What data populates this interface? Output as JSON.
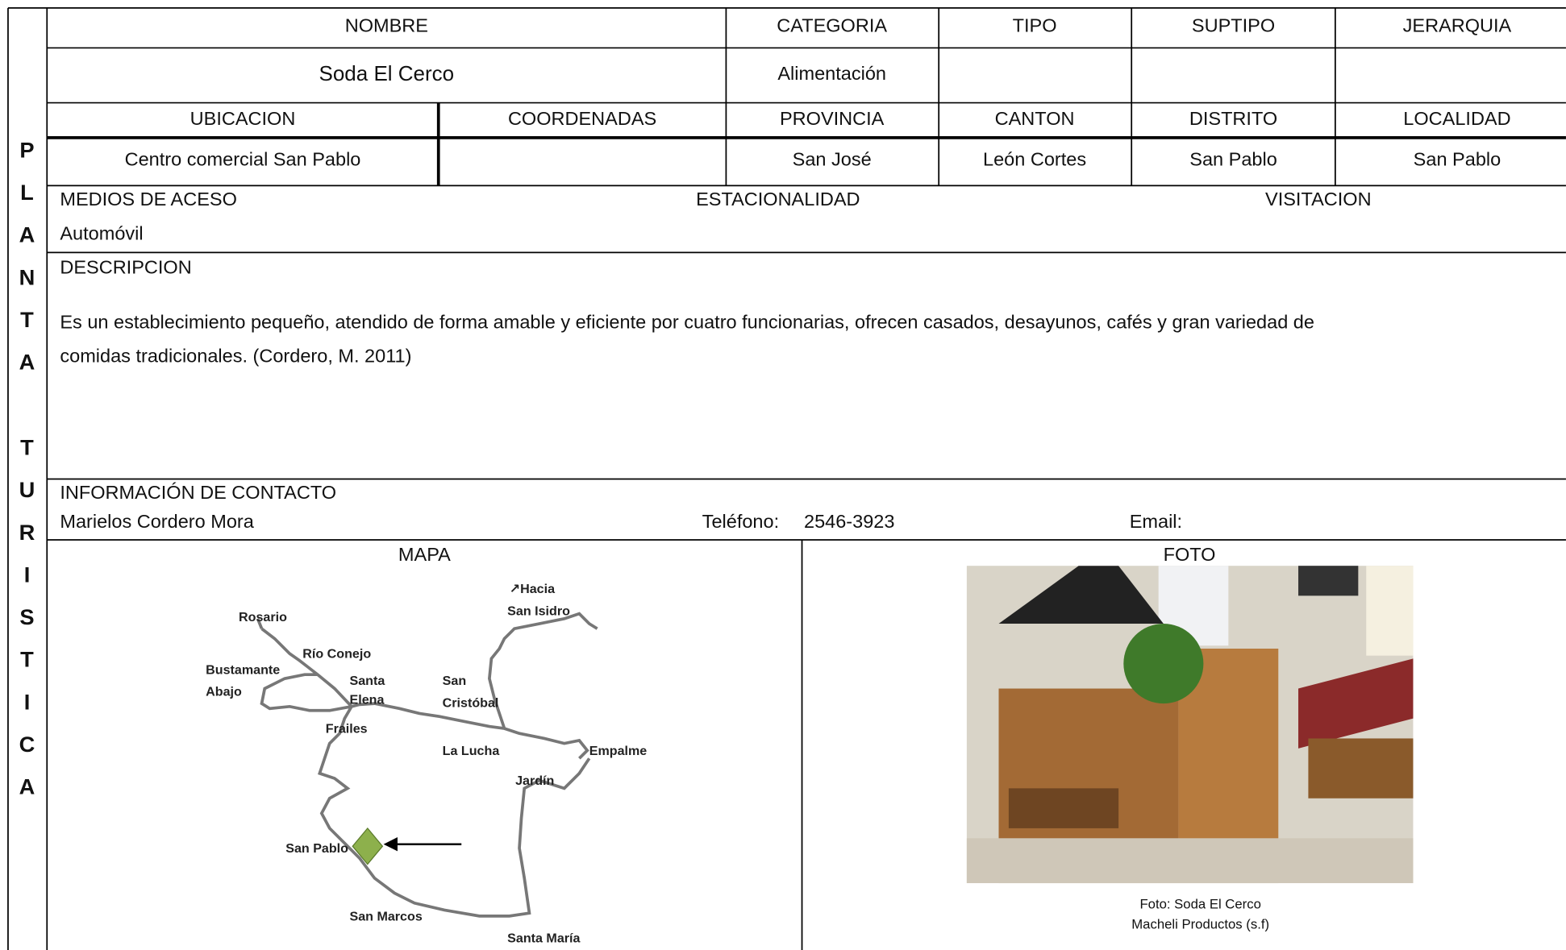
{
  "side_label": [
    "P",
    "L",
    "A",
    "N",
    "T",
    "A",
    "T",
    "U",
    "R",
    "I",
    "S",
    "T",
    "I",
    "C",
    "A"
  ],
  "header": {
    "columns": [
      "NOMBRE",
      "CATEGORIA",
      "TIPO",
      "SUPTIPO",
      "JERARQUIA"
    ]
  },
  "identity": {
    "name": "Soda El Cerco",
    "category": "Alimentación"
  },
  "location_header": {
    "columns": [
      "UBICACION",
      "COORDENADAS",
      "PROVINCIA",
      "CANTON",
      "DISTRITO",
      "LOCALIDAD"
    ]
  },
  "location": {
    "ubicacion": "Centro comercial San Pablo",
    "provincia": "San José",
    "canton": "León Cortes",
    "distrito": "San Pablo",
    "localidad": "San Pablo"
  },
  "access": {
    "label": "MEDIOS DE ACESO",
    "value": "Automóvil",
    "seasonality": "ESTACIONALIDAD",
    "visitation": "VISITACION"
  },
  "description": {
    "label": "DESCRIPCION",
    "lines": [
      "Es un establecimiento pequeño, atendido de forma amable y eficiente por cuatro funcionarias, ofrecen casados, desayunos, cafés y gran variedad de",
      "comidas tradicionales. (Cordero, M. 2011)"
    ]
  },
  "contact": {
    "label": "INFORMACIÓN DE CONTACTO",
    "name": "Marielos Cordero Mora",
    "phone_label": "Teléfono:",
    "phone": "2546-3923",
    "email_label": "Email:"
  },
  "map": {
    "title": "MAPA",
    "labels": [
      "↗Hacia",
      "San Isidro",
      "Rosario",
      "Río Conejo",
      "Bustamante",
      "Abajo",
      "Santa",
      "Elena",
      "San",
      "Cristóbal",
      "Frailes",
      "La Lucha",
      "Empalme",
      "Jardín",
      "San Pablo",
      "San Marcos",
      "Santa María"
    ]
  },
  "photo": {
    "title": "FOTO",
    "caption": [
      "Foto: Soda El Cerco",
      "Macheli Productos (s.f)"
    ]
  }
}
